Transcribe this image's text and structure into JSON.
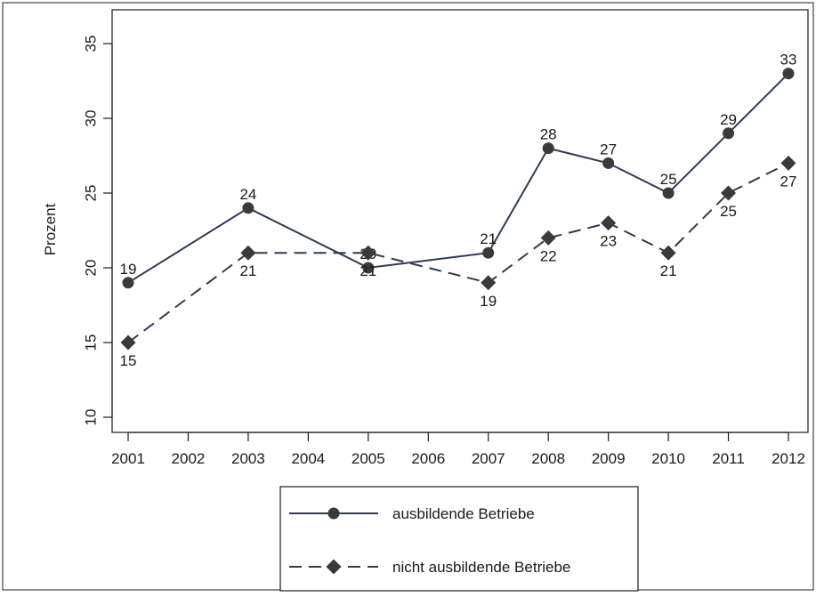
{
  "chart_data": {
    "type": "line",
    "title": "",
    "xlabel": "",
    "ylabel": "Prozent",
    "categories": [
      "2001",
      "2002",
      "2003",
      "2004",
      "2005",
      "2006",
      "2007",
      "2008",
      "2009",
      "2010",
      "2011",
      "2012"
    ],
    "y_ticks": [
      "10",
      "15",
      "20",
      "25",
      "30",
      "35"
    ],
    "ylim": [
      10,
      35
    ],
    "grid": false,
    "legend_position": "bottom",
    "series": [
      {
        "name": "ausbildende Betriebe",
        "marker": "circle",
        "line_style": "solid",
        "color": "#2e3b52",
        "points": [
          {
            "x": "2001",
            "y": 19,
            "label": "19"
          },
          {
            "x": "2003",
            "y": 24,
            "label": "24"
          },
          {
            "x": "2005",
            "y": 20,
            "label": "20"
          },
          {
            "x": "2007",
            "y": 21,
            "label": "21"
          },
          {
            "x": "2008",
            "y": 28,
            "label": "28"
          },
          {
            "x": "2009",
            "y": 27,
            "label": "27"
          },
          {
            "x": "2010",
            "y": 25,
            "label": "25"
          },
          {
            "x": "2011",
            "y": 29,
            "label": "29"
          },
          {
            "x": "2012",
            "y": 33,
            "label": "33"
          }
        ]
      },
      {
        "name": "nicht ausbildende Betriebe",
        "marker": "diamond",
        "line_style": "dashed",
        "color": "#2e3b52",
        "points": [
          {
            "x": "2001",
            "y": 15,
            "label": "15"
          },
          {
            "x": "2003",
            "y": 21,
            "label": "21"
          },
          {
            "x": "2005",
            "y": 21,
            "label": "21"
          },
          {
            "x": "2007",
            "y": 19,
            "label": "19"
          },
          {
            "x": "2008",
            "y": 22,
            "label": "22"
          },
          {
            "x": "2009",
            "y": 23,
            "label": "23"
          },
          {
            "x": "2010",
            "y": 21,
            "label": "21"
          },
          {
            "x": "2011",
            "y": 25,
            "label": "25"
          },
          {
            "x": "2012",
            "y": 27,
            "label": "27"
          }
        ]
      }
    ]
  },
  "colors": {
    "line": "#2e3b52",
    "marker": "#3a3a3a",
    "frame": "#1a1a1a"
  }
}
